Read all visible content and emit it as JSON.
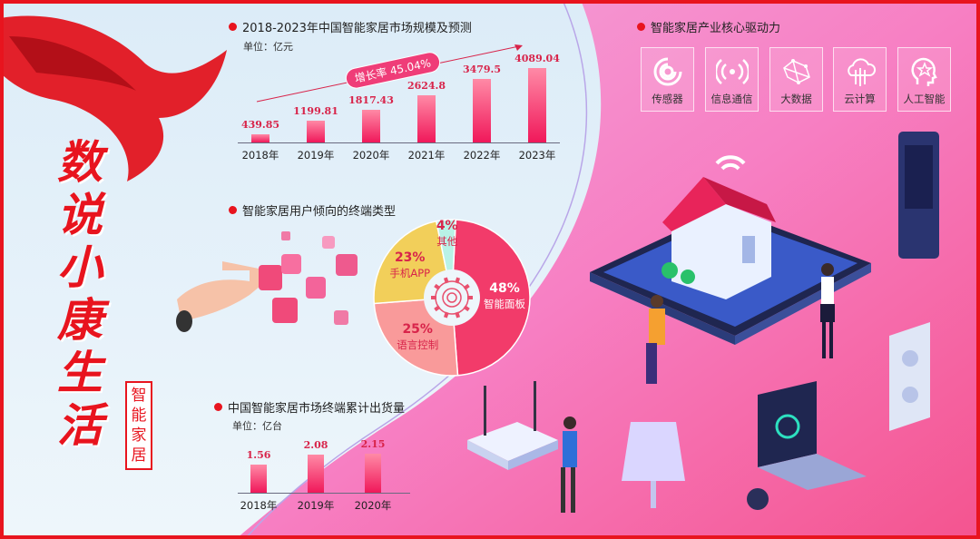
{
  "poster": {
    "main_title": [
      "数",
      "说",
      "小",
      "康",
      "生",
      "活"
    ],
    "subtitle": [
      "智",
      "能",
      "家",
      "居"
    ]
  },
  "colors": {
    "accent": "#e8141e",
    "bar": "#f0185a",
    "pink_bg": "#f77fc3",
    "blue_bg": "#eaf4fb"
  },
  "chart_data": [
    {
      "type": "bar",
      "title": "2018-2023年中国智能家居市场规模及预测",
      "unit": "单位：亿元",
      "categories": [
        "2018年",
        "2019年",
        "2020年",
        "2021年",
        "2022年",
        "2023年"
      ],
      "values": [
        439.85,
        1199.81,
        1817.43,
        2624.8,
        3479.5,
        4089.04
      ],
      "value_labels": [
        "439.85",
        "1199.81",
        "1817.43",
        "2624.8",
        "3479.5",
        "4089.04"
      ],
      "annotation": "增长率 45.04%",
      "ylim": [
        0,
        4500
      ]
    },
    {
      "type": "pie",
      "title": "智能家居用户倾向的终端类型",
      "slices": [
        {
          "label": "智能面板",
          "value": 48,
          "text": "48%",
          "color": "#f23b6a"
        },
        {
          "label": "语言控制",
          "value": 25,
          "text": "25%",
          "color": "#f99a9a"
        },
        {
          "label": "手机APP",
          "value": 23,
          "text": "23%",
          "color": "#f2cf5a"
        },
        {
          "label": "其他",
          "value": 4,
          "text": "4%",
          "color": "#b9f2e6"
        }
      ],
      "center_icon": "gear-icon"
    },
    {
      "type": "bar",
      "title": "中国智能家居市场终端累计出货量",
      "unit": "单位：亿台",
      "categories": [
        "2018年",
        "2019年",
        "2020年"
      ],
      "values": [
        1.56,
        2.08,
        2.15
      ],
      "value_labels": [
        "1.56",
        "2.08",
        "2.15"
      ],
      "ylim": [
        0,
        2.4
      ]
    }
  ],
  "drivers": {
    "title": "智能家居产业核心驱动力",
    "items": [
      {
        "label": "传感器",
        "icon": "sensor-icon"
      },
      {
        "label": "信息通信",
        "icon": "signal-icon"
      },
      {
        "label": "大数据",
        "icon": "big-data-icon"
      },
      {
        "label": "云计算",
        "icon": "cloud-icon"
      },
      {
        "label": "人工智能",
        "icon": "ai-head-icon"
      }
    ]
  }
}
